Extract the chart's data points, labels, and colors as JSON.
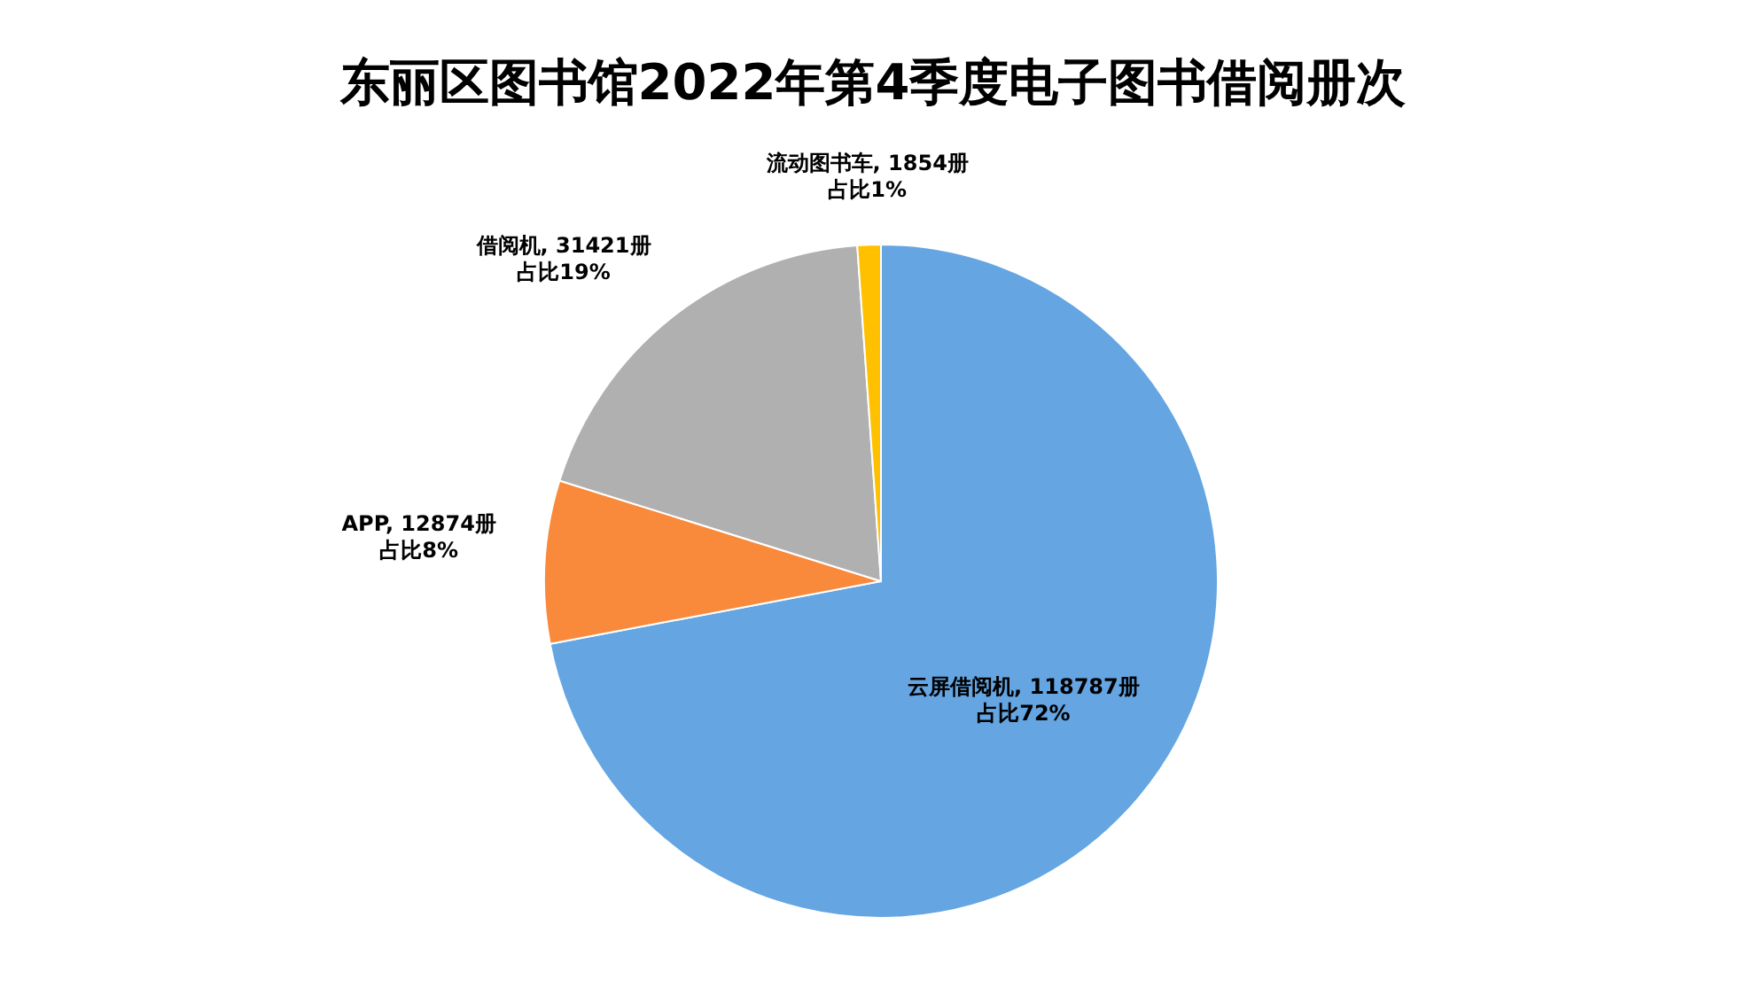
{
  "chart_data": {
    "type": "pie",
    "title": "东丽区图书馆2022年第4季度电子图书借阅册次",
    "categories": [
      "云屏借阅机",
      "APP",
      "借阅机",
      "流动图书车"
    ],
    "values": [
      118787,
      12874,
      31421,
      1854
    ],
    "colors": [
      "#64a5e2",
      "#f98a3c",
      "#b0b0b0",
      "#ffc000"
    ],
    "value_labels": [
      "118787册",
      "12874册",
      "31421册",
      "1854册"
    ],
    "annotations": [
      "占比72%",
      "占比8%",
      "占比19%",
      "占比1%"
    ],
    "legend": false
  }
}
